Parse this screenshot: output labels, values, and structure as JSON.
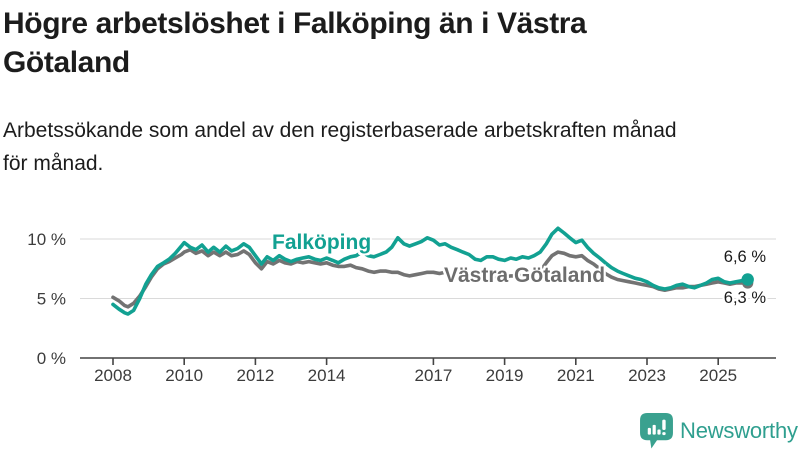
{
  "header": {
    "title_lines": [
      "Högre arbetslöshet i Falköping än i Västra",
      "Götaland"
    ],
    "subtitle_lines": [
      "Arbetssökande som andel av den registerbaserade arbetskraften månad",
      "för månad."
    ]
  },
  "footer": {
    "brand": "Newsworthy",
    "brand_color": "#2f9f8f"
  },
  "chart_data": {
    "type": "line",
    "unit": "%",
    "grid": "horizontal-only",
    "legend_position": "inline-labels",
    "x_axis": {
      "ticks": [
        2008,
        2010,
        2012,
        2014,
        2017,
        2019,
        2021,
        2023,
        2025
      ],
      "range": [
        2007.1,
        2026.6
      ]
    },
    "y_axis": {
      "ticks": [
        0,
        5,
        10
      ],
      "tick_labels": [
        "0 %",
        "5 %",
        "10 %"
      ],
      "range": [
        0,
        12.9
      ]
    },
    "colors": {
      "falkoping": "#12a192",
      "vastra_gotaland": "#737373",
      "gridline": "#dadada",
      "axis": "#444444"
    },
    "series": [
      {
        "name": "Falköping",
        "color": "#12a192",
        "end_label": "6,6 %",
        "end_value": 6.6,
        "points": [
          [
            2008.0,
            4.5
          ],
          [
            2008.17,
            4.1
          ],
          [
            2008.33,
            3.8
          ],
          [
            2008.42,
            3.7
          ],
          [
            2008.58,
            4.0
          ],
          [
            2008.75,
            5.0
          ],
          [
            2008.92,
            6.2
          ],
          [
            2009.08,
            7.0
          ],
          [
            2009.25,
            7.7
          ],
          [
            2009.42,
            8.0
          ],
          [
            2009.58,
            8.3
          ],
          [
            2009.75,
            8.8
          ],
          [
            2009.92,
            9.4
          ],
          [
            2010.0,
            9.7
          ],
          [
            2010.17,
            9.3
          ],
          [
            2010.33,
            9.1
          ],
          [
            2010.5,
            9.5
          ],
          [
            2010.67,
            8.9
          ],
          [
            2010.83,
            9.3
          ],
          [
            2011.0,
            8.9
          ],
          [
            2011.17,
            9.4
          ],
          [
            2011.33,
            9.0
          ],
          [
            2011.5,
            9.2
          ],
          [
            2011.67,
            9.6
          ],
          [
            2011.83,
            9.3
          ],
          [
            2012.0,
            8.6
          ],
          [
            2012.17,
            7.9
          ],
          [
            2012.33,
            8.5
          ],
          [
            2012.5,
            8.2
          ],
          [
            2012.67,
            8.6
          ],
          [
            2012.83,
            8.3
          ],
          [
            2013.0,
            8.1
          ],
          [
            2013.17,
            8.3
          ],
          [
            2013.33,
            8.4
          ],
          [
            2013.5,
            8.5
          ],
          [
            2013.67,
            8.3
          ],
          [
            2013.83,
            8.2
          ],
          [
            2014.0,
            8.4
          ],
          [
            2014.17,
            8.2
          ],
          [
            2014.33,
            8.0
          ],
          [
            2014.5,
            8.3
          ],
          [
            2014.67,
            8.5
          ],
          [
            2014.83,
            8.6
          ],
          [
            2015.0,
            8.9
          ],
          [
            2015.17,
            8.6
          ],
          [
            2015.33,
            8.5
          ],
          [
            2015.5,
            8.7
          ],
          [
            2015.67,
            8.9
          ],
          [
            2015.83,
            9.3
          ],
          [
            2016.0,
            10.1
          ],
          [
            2016.17,
            9.6
          ],
          [
            2016.33,
            9.4
          ],
          [
            2016.5,
            9.6
          ],
          [
            2016.67,
            9.8
          ],
          [
            2016.83,
            10.1
          ],
          [
            2017.0,
            9.9
          ],
          [
            2017.17,
            9.5
          ],
          [
            2017.33,
            9.6
          ],
          [
            2017.5,
            9.3
          ],
          [
            2017.67,
            9.1
          ],
          [
            2017.83,
            8.9
          ],
          [
            2018.0,
            8.7
          ],
          [
            2018.17,
            8.3
          ],
          [
            2018.33,
            8.2
          ],
          [
            2018.5,
            8.5
          ],
          [
            2018.67,
            8.5
          ],
          [
            2018.83,
            8.3
          ],
          [
            2019.0,
            8.2
          ],
          [
            2019.17,
            8.4
          ],
          [
            2019.33,
            8.3
          ],
          [
            2019.5,
            8.5
          ],
          [
            2019.67,
            8.4
          ],
          [
            2019.83,
            8.6
          ],
          [
            2020.0,
            8.9
          ],
          [
            2020.17,
            9.6
          ],
          [
            2020.33,
            10.4
          ],
          [
            2020.5,
            10.9
          ],
          [
            2020.67,
            10.5
          ],
          [
            2020.83,
            10.1
          ],
          [
            2021.0,
            9.7
          ],
          [
            2021.17,
            9.9
          ],
          [
            2021.33,
            9.3
          ],
          [
            2021.5,
            8.8
          ],
          [
            2021.67,
            8.4
          ],
          [
            2021.83,
            8.0
          ],
          [
            2022.0,
            7.6
          ],
          [
            2022.17,
            7.3
          ],
          [
            2022.33,
            7.1
          ],
          [
            2022.5,
            6.9
          ],
          [
            2022.67,
            6.7
          ],
          [
            2022.83,
            6.6
          ],
          [
            2023.0,
            6.4
          ],
          [
            2023.17,
            6.1
          ],
          [
            2023.33,
            5.9
          ],
          [
            2023.5,
            5.8
          ],
          [
            2023.67,
            5.9
          ],
          [
            2023.83,
            6.1
          ],
          [
            2024.0,
            6.2
          ],
          [
            2024.17,
            6.0
          ],
          [
            2024.33,
            5.9
          ],
          [
            2024.5,
            6.1
          ],
          [
            2024.67,
            6.3
          ],
          [
            2024.83,
            6.6
          ],
          [
            2025.0,
            6.7
          ],
          [
            2025.17,
            6.4
          ],
          [
            2025.33,
            6.3
          ],
          [
            2025.5,
            6.4
          ],
          [
            2025.67,
            6.5
          ],
          [
            2025.83,
            6.6
          ]
        ]
      },
      {
        "name": "Västra Götaland",
        "color": "#737373",
        "end_label": "6,3 %",
        "end_value": 6.3,
        "points": [
          [
            2008.0,
            5.1
          ],
          [
            2008.17,
            4.8
          ],
          [
            2008.33,
            4.4
          ],
          [
            2008.42,
            4.3
          ],
          [
            2008.58,
            4.6
          ],
          [
            2008.75,
            5.2
          ],
          [
            2008.92,
            6.0
          ],
          [
            2009.08,
            6.8
          ],
          [
            2009.25,
            7.5
          ],
          [
            2009.42,
            7.9
          ],
          [
            2009.58,
            8.1
          ],
          [
            2009.75,
            8.4
          ],
          [
            2009.92,
            8.7
          ],
          [
            2010.0,
            8.9
          ],
          [
            2010.17,
            9.1
          ],
          [
            2010.33,
            8.8
          ],
          [
            2010.5,
            9.0
          ],
          [
            2010.67,
            8.6
          ],
          [
            2010.83,
            8.9
          ],
          [
            2011.0,
            8.6
          ],
          [
            2011.17,
            8.9
          ],
          [
            2011.33,
            8.6
          ],
          [
            2011.5,
            8.7
          ],
          [
            2011.67,
            9.0
          ],
          [
            2011.83,
            8.7
          ],
          [
            2012.0,
            8.0
          ],
          [
            2012.17,
            7.5
          ],
          [
            2012.33,
            8.1
          ],
          [
            2012.5,
            7.9
          ],
          [
            2012.67,
            8.2
          ],
          [
            2012.83,
            8.0
          ],
          [
            2013.0,
            7.9
          ],
          [
            2013.17,
            8.1
          ],
          [
            2013.33,
            8.0
          ],
          [
            2013.5,
            8.1
          ],
          [
            2013.67,
            8.0
          ],
          [
            2013.83,
            7.9
          ],
          [
            2014.0,
            8.0
          ],
          [
            2014.17,
            7.8
          ],
          [
            2014.33,
            7.7
          ],
          [
            2014.5,
            7.7
          ],
          [
            2014.67,
            7.8
          ],
          [
            2014.83,
            7.6
          ],
          [
            2015.0,
            7.5
          ],
          [
            2015.17,
            7.3
          ],
          [
            2015.33,
            7.2
          ],
          [
            2015.5,
            7.3
          ],
          [
            2015.67,
            7.3
          ],
          [
            2015.83,
            7.2
          ],
          [
            2016.0,
            7.2
          ],
          [
            2016.17,
            7.0
          ],
          [
            2016.33,
            6.9
          ],
          [
            2016.5,
            7.0
          ],
          [
            2016.67,
            7.1
          ],
          [
            2016.83,
            7.2
          ],
          [
            2017.0,
            7.2
          ],
          [
            2017.17,
            7.1
          ],
          [
            2017.33,
            7.2
          ],
          [
            2017.5,
            7.1
          ],
          [
            2017.67,
            7.0
          ],
          [
            2017.83,
            6.9
          ],
          [
            2018.0,
            6.9
          ],
          [
            2018.17,
            6.8
          ],
          [
            2018.33,
            6.7
          ],
          [
            2018.5,
            6.8
          ],
          [
            2018.67,
            6.9
          ],
          [
            2018.83,
            6.8
          ],
          [
            2019.0,
            6.8
          ],
          [
            2019.17,
            6.9
          ],
          [
            2019.33,
            6.9
          ],
          [
            2019.5,
            7.0
          ],
          [
            2019.67,
            7.0
          ],
          [
            2019.83,
            7.1
          ],
          [
            2020.0,
            7.3
          ],
          [
            2020.17,
            8.0
          ],
          [
            2020.33,
            8.6
          ],
          [
            2020.5,
            8.9
          ],
          [
            2020.67,
            8.8
          ],
          [
            2020.83,
            8.6
          ],
          [
            2021.0,
            8.5
          ],
          [
            2021.17,
            8.6
          ],
          [
            2021.33,
            8.2
          ],
          [
            2021.5,
            7.9
          ],
          [
            2021.67,
            7.5
          ],
          [
            2021.83,
            7.1
          ],
          [
            2022.0,
            6.8
          ],
          [
            2022.17,
            6.6
          ],
          [
            2022.33,
            6.5
          ],
          [
            2022.5,
            6.4
          ],
          [
            2022.67,
            6.3
          ],
          [
            2022.83,
            6.2
          ],
          [
            2023.0,
            6.1
          ],
          [
            2023.17,
            6.0
          ],
          [
            2023.33,
            5.8
          ],
          [
            2023.5,
            5.7
          ],
          [
            2023.67,
            5.8
          ],
          [
            2023.83,
            5.9
          ],
          [
            2024.0,
            5.9
          ],
          [
            2024.17,
            6.0
          ],
          [
            2024.33,
            6.0
          ],
          [
            2024.5,
            6.1
          ],
          [
            2024.67,
            6.2
          ],
          [
            2024.83,
            6.3
          ],
          [
            2025.0,
            6.4
          ],
          [
            2025.17,
            6.3
          ],
          [
            2025.33,
            6.2
          ],
          [
            2025.5,
            6.3
          ],
          [
            2025.67,
            6.3
          ],
          [
            2025.83,
            6.3
          ]
        ]
      }
    ]
  }
}
